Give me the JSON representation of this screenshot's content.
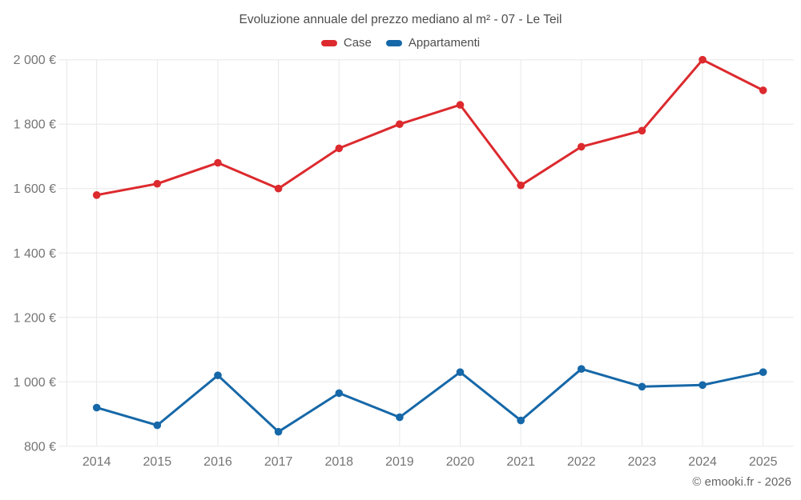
{
  "chart_data": {
    "type": "line",
    "title": "Evoluzione annuale del prezzo mediano al m² - 07 - Le Teil",
    "categories": [
      "2014",
      "2015",
      "2016",
      "2017",
      "2018",
      "2019",
      "2020",
      "2021",
      "2022",
      "2023",
      "2024",
      "2025"
    ],
    "series": [
      {
        "name": "Case",
        "color": "#dc2a2e",
        "values": [
          1580,
          1615,
          1680,
          1600,
          1725,
          1800,
          1860,
          1610,
          1730,
          1780,
          2000,
          1905
        ]
      },
      {
        "name": "Appartamenti",
        "color": "#1668a8",
        "values": [
          920,
          865,
          1020,
          845,
          965,
          890,
          1030,
          880,
          1040,
          985,
          990,
          1030
        ]
      }
    ],
    "xlabel": "",
    "ylabel": "",
    "ylim": [
      800,
      2000
    ],
    "yticks": [
      {
        "value": 800,
        "label": "800 €"
      },
      {
        "value": 1000,
        "label": "1 000 €"
      },
      {
        "value": 1200,
        "label": "1 200 €"
      },
      {
        "value": 1400,
        "label": "1 400 €"
      },
      {
        "value": 1600,
        "label": "1 600 €"
      },
      {
        "value": 1800,
        "label": "1 800 €"
      },
      {
        "value": 2000,
        "label": "2 000 €"
      }
    ],
    "grid": true,
    "legend_position": "top"
  },
  "footer": {
    "attribution": "© emooki.fr - 2026"
  }
}
